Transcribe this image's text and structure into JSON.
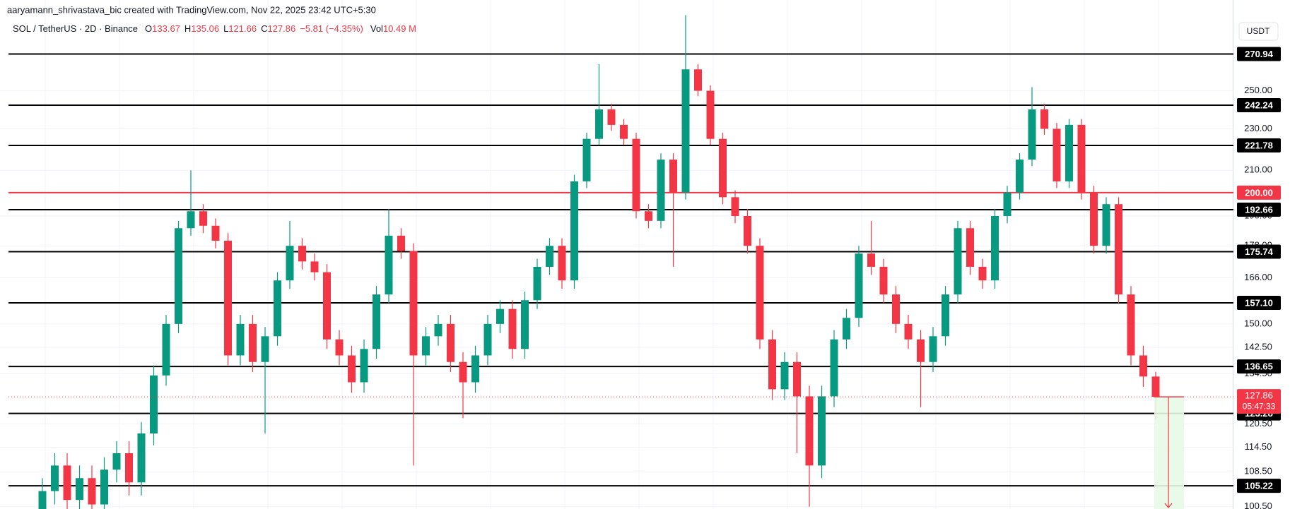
{
  "header": "aaryamann_shrivastava_bic created with TradingView.com, Nov 22, 2025 23:42 UTC+5:30",
  "currency_button": "USDT",
  "chart_data": {
    "type": "candlestick",
    "symbol": "SOL / TetherUS · 2D · Binance",
    "ohlc_legend": {
      "labels": [
        "O",
        "H",
        "L",
        "C"
      ],
      "values": [
        133.67,
        135.06,
        121.66,
        127.86
      ]
    },
    "change_label": "−5.81 (−4.35%)",
    "volume_label": "Vol",
    "volume_value": "10.49 M",
    "log_scale": true,
    "grid": true,
    "up_color": "#089981",
    "down_color": "#f23645",
    "ylim": [
      100,
      305
    ],
    "yticks": [
      {
        "value": 250,
        "label": "250.00"
      },
      {
        "value": 230,
        "label": "230.00"
      },
      {
        "value": 210,
        "label": "210.00"
      },
      {
        "value": 190,
        "label": "190.00"
      },
      {
        "value": 178,
        "label": "178.00"
      },
      {
        "value": 166,
        "label": "166.00"
      },
      {
        "value": 150,
        "label": "150.00"
      },
      {
        "value": 142.5,
        "label": "142.50"
      },
      {
        "value": 134.5,
        "label": "134.50"
      },
      {
        "value": 120.5,
        "label": "120.50"
      },
      {
        "value": 114.5,
        "label": "114.50"
      },
      {
        "value": 108.5,
        "label": "108.50"
      },
      {
        "value": 100.5,
        "label": "100.50"
      }
    ],
    "open": [
      100,
      104,
      110,
      102,
      107,
      101,
      109,
      113,
      106,
      118,
      134,
      150,
      185,
      192,
      186,
      180,
      140,
      150,
      138,
      146,
      165,
      178,
      172,
      168,
      145,
      140,
      132,
      142,
      160,
      182,
      176,
      140,
      146,
      150,
      138,
      132,
      140,
      150,
      155,
      142,
      158,
      170,
      178,
      165,
      205,
      225,
      240,
      232,
      225,
      192,
      188,
      215,
      200,
      262,
      250,
      225,
      198,
      190,
      178,
      145,
      130,
      138,
      128,
      110,
      128,
      145,
      152,
      175,
      170,
      160,
      150,
      145,
      138,
      146,
      160,
      185,
      170,
      165,
      190,
      200,
      215,
      240,
      230,
      205,
      232,
      200,
      178,
      195,
      160,
      140,
      133.67
    ],
    "high": [
      107,
      113,
      113,
      110,
      110,
      112,
      116,
      116,
      121,
      137,
      153,
      188,
      210,
      195,
      189,
      183,
      153,
      153,
      149,
      168,
      188,
      181,
      175,
      171,
      148,
      143,
      145,
      163,
      193,
      185,
      179,
      149,
      153,
      153,
      141,
      143,
      153,
      158,
      158,
      161,
      173,
      181,
      181,
      208,
      228,
      265,
      243,
      235,
      228,
      195,
      218,
      218,
      295,
      265,
      253,
      228,
      201,
      193,
      181,
      148,
      141,
      141,
      131,
      131,
      148,
      155,
      178,
      188,
      173,
      163,
      153,
      148,
      149,
      163,
      188,
      188,
      173,
      193,
      203,
      218,
      252,
      243,
      233,
      235,
      235,
      203,
      198,
      198,
      163,
      143,
      135.06
    ],
    "low": [
      97,
      101,
      99,
      99,
      98,
      98,
      106,
      103,
      103,
      115,
      131,
      147,
      182,
      183,
      177,
      137,
      137,
      135,
      118,
      143,
      162,
      169,
      165,
      142,
      137,
      129,
      129,
      139,
      157,
      173,
      110,
      137,
      143,
      135,
      122,
      129,
      137,
      147,
      139,
      139,
      155,
      167,
      162,
      162,
      202,
      222,
      229,
      222,
      189,
      185,
      185,
      170,
      197,
      247,
      222,
      195,
      187,
      175,
      142,
      127,
      127,
      113,
      100.5,
      107,
      125,
      142,
      149,
      167,
      157,
      147,
      142,
      125,
      135,
      143,
      157,
      167,
      162,
      162,
      187,
      197,
      212,
      227,
      202,
      202,
      197,
      175,
      175,
      157,
      137,
      130.67,
      121.66
    ],
    "close": [
      104,
      110,
      102,
      107,
      101,
      109,
      113,
      106,
      118,
      134,
      150,
      185,
      192,
      186,
      180,
      140,
      150,
      138,
      146,
      165,
      178,
      172,
      168,
      145,
      140,
      132,
      142,
      160,
      182,
      176,
      140,
      146,
      150,
      138,
      132,
      140,
      150,
      155,
      142,
      158,
      170,
      178,
      165,
      205,
      225,
      240,
      232,
      225,
      192,
      188,
      215,
      200,
      262,
      250,
      225,
      198,
      190,
      178,
      145,
      130,
      138,
      128,
      110,
      128,
      145,
      152,
      175,
      170,
      160,
      150,
      145,
      138,
      146,
      160,
      185,
      170,
      165,
      190,
      200,
      215,
      240,
      230,
      205,
      232,
      200,
      178,
      195,
      160,
      140,
      133.67,
      127.86
    ],
    "levels": [
      {
        "value": 270.94,
        "label": "270.94",
        "color": "#000000"
      },
      {
        "value": 242.24,
        "label": "242.24",
        "color": "#000000"
      },
      {
        "value": 221.78,
        "label": "221.78",
        "color": "#000000"
      },
      {
        "value": 200,
        "label": "200.00",
        "color": "#f23645"
      },
      {
        "value": 192.66,
        "label": "192.66",
        "color": "#000000"
      },
      {
        "value": 175.74,
        "label": "175.74",
        "color": "#000000"
      },
      {
        "value": 157.1,
        "label": "157.10",
        "color": "#000000"
      },
      {
        "value": 136.65,
        "label": "136.65",
        "color": "#000000"
      },
      {
        "value": 123.28,
        "label": "123.28",
        "color": "#000000"
      },
      {
        "value": 105.22,
        "label": "105.22",
        "color": "#000000"
      }
    ],
    "last_price": {
      "value": 127.86,
      "countdown": "05:47:33"
    }
  }
}
